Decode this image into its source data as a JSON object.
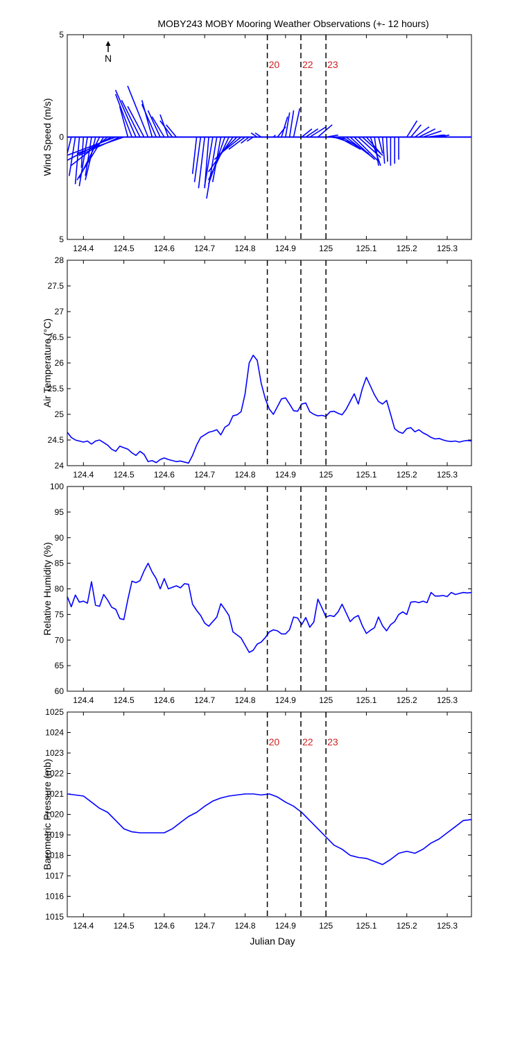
{
  "title": "MOBY243 MOBY Mooring Weather Observations (+- 12 hours)",
  "north_label": "N",
  "xlabel": "Julian Day",
  "colors": {
    "line": "#0000ff",
    "marker_text": "#cc2222",
    "axis": "#000000"
  },
  "x_range": [
    124.36,
    125.36
  ],
  "x_ticks": [
    "124.4",
    "124.5",
    "124.6",
    "124.7",
    "124.8",
    "124.9",
    "125",
    "125.1",
    "125.2",
    "125.3"
  ],
  "markers": [
    {
      "x": 124.855,
      "label": "20"
    },
    {
      "x": 124.938,
      "label": "22"
    },
    {
      "x": 125.0,
      "label": "23"
    }
  ],
  "chart_data": [
    {
      "type": "line",
      "subtype": "wind-stick",
      "ylabel": "Wind Speed (m/s)",
      "ylim": [
        -5,
        5
      ],
      "y_tick_labels": [
        "5",
        "0",
        "5"
      ],
      "show_marker_labels": true,
      "series": [
        {
          "x": [
            124.37,
            124.38,
            124.39,
            124.4,
            124.41,
            124.42,
            124.43,
            124.44,
            124.45,
            124.46,
            124.47,
            124.48,
            124.49,
            124.5,
            124.51,
            124.52,
            124.53,
            124.54,
            124.55,
            124.56,
            124.57,
            124.58,
            124.59,
            124.6,
            124.61,
            124.62,
            124.63,
            124.68,
            124.69,
            124.7,
            124.71,
            124.72,
            124.73,
            124.74,
            124.75,
            124.76,
            124.77,
            124.78,
            124.79,
            124.8,
            124.81,
            124.82,
            124.83,
            124.84,
            124.87,
            124.88,
            124.89,
            124.9,
            124.91,
            124.92,
            124.94,
            124.95,
            124.96,
            124.98,
            125.0,
            125.01,
            125.02,
            125.03,
            125.04,
            125.05,
            125.06,
            125.07,
            125.08,
            125.09,
            125.1,
            125.11,
            125.12,
            125.13,
            125.14,
            125.15,
            125.16,
            125.17,
            125.18,
            125.2,
            125.21,
            125.22,
            125.23,
            125.24,
            125.25,
            125.26,
            125.28,
            125.3,
            125.32,
            125.34,
            125.35
          ],
          "u": [
            -0.4,
            -0.3,
            -0.2,
            -0.1,
            -0.4,
            -0.3,
            -0.5,
            -1.0,
            -1.3,
            -1.8,
            -2.3,
            -2.4,
            -2.0,
            -2.3,
            -0.4,
            -0.8,
            -1.0,
            -0.9,
            -0.8,
            -1.0,
            -0.5,
            -0.7,
            -0.6,
            -0.6,
            -0.4,
            -0.6,
            -0.5,
            -0.2,
            -0.3,
            -0.3,
            -0.2,
            -0.4,
            -0.5,
            -0.4,
            -0.8,
            -1.0,
            -1.2,
            -1.1,
            -1.0,
            -0.8,
            -0.4,
            -0.3,
            -0.3,
            -0.3,
            0.1,
            0.4,
            0.3,
            0.2,
            0.2,
            0.3,
            0.5,
            0.6,
            0.8,
            0.7,
            0.6,
            0.8,
            0.9,
            1.1,
            1.3,
            1.3,
            1.2,
            1.2,
            1.1,
            1.0,
            0.7,
            0.5,
            0.2,
            0.2,
            0.1,
            0.05,
            0.0,
            0.0,
            0.0,
            0.5,
            0.5,
            0.7,
            0.8,
            0.9,
            0.8,
            0.7,
            0.5,
            0.5,
            0.4,
            0.3,
            0.2
          ],
          "v": [
            -1.6,
            -1.9,
            -2.3,
            -1.5,
            -2.4,
            -1.9,
            -2.1,
            -2.0,
            -2.1,
            -1.4,
            -1.2,
            -0.9,
            -0.9,
            -0.8,
            1.5,
            2.1,
            2.3,
            1.8,
            1.5,
            2.5,
            1.8,
            1.6,
            1.3,
            1.0,
            1.1,
            0.8,
            0.6,
            -1.8,
            -2.2,
            -2.5,
            -2.5,
            -2.4,
            -3.0,
            -2.2,
            -2.3,
            -2.1,
            -1.7,
            -1.1,
            -0.8,
            -0.6,
            -0.3,
            -0.2,
            0.2,
            0.2,
            0.1,
            0.5,
            1.0,
            1.2,
            1.3,
            1.4,
            0.4,
            0.4,
            0.5,
            0.6,
            0.1,
            -0.1,
            -0.3,
            -0.6,
            -0.8,
            -1.0,
            -1.1,
            -1.2,
            -1.0,
            -0.9,
            -0.8,
            -1.4,
            -1.4,
            -0.8,
            -1.3,
            -1.2,
            -1.4,
            -1.3,
            -1.1,
            0.8,
            0.6,
            0.5,
            0.4,
            0.3,
            0.1,
            0.1,
            0.1,
            0.0,
            0.0,
            0.0,
            0.0
          ]
        }
      ]
    },
    {
      "type": "line",
      "ylabel": "Air Temperature (°C)",
      "ylim": [
        24,
        28
      ],
      "y_tick_labels": [
        "24",
        "24.5",
        "25",
        "25.5",
        "26",
        "26.5",
        "27",
        "27.5",
        "28"
      ],
      "show_marker_labels": false,
      "series": [
        {
          "x": [
            124.36,
            124.37,
            124.38,
            124.39,
            124.4,
            124.41,
            124.42,
            124.43,
            124.44,
            124.45,
            124.46,
            124.47,
            124.48,
            124.49,
            124.5,
            124.51,
            124.52,
            124.53,
            124.54,
            124.55,
            124.56,
            124.57,
            124.58,
            124.59,
            124.6,
            124.61,
            124.62,
            124.63,
            124.64,
            124.65,
            124.66,
            124.67,
            124.68,
            124.69,
            124.7,
            124.71,
            124.72,
            124.73,
            124.74,
            124.75,
            124.76,
            124.77,
            124.78,
            124.79,
            124.8,
            124.81,
            124.82,
            124.83,
            124.84,
            124.85,
            124.86,
            124.87,
            124.88,
            124.89,
            124.9,
            124.91,
            124.92,
            124.93,
            124.94,
            124.95,
            124.96,
            124.97,
            124.98,
            124.99,
            125.0,
            125.01,
            125.02,
            125.03,
            125.04,
            125.05,
            125.06,
            125.07,
            125.08,
            125.09,
            125.1,
            125.11,
            125.12,
            125.13,
            125.14,
            125.15,
            125.16,
            125.17,
            125.18,
            125.19,
            125.2,
            125.21,
            125.22,
            125.23,
            125.24,
            125.25,
            125.26,
            125.27,
            125.28,
            125.29,
            125.3,
            125.31,
            125.32,
            125.33,
            125.34,
            125.35,
            125.36
          ],
          "values": [
            24.65,
            24.55,
            24.5,
            24.48,
            24.46,
            24.48,
            24.42,
            24.48,
            24.5,
            24.45,
            24.4,
            24.32,
            24.28,
            24.38,
            24.35,
            24.32,
            24.25,
            24.2,
            24.28,
            24.22,
            24.08,
            24.1,
            24.06,
            24.12,
            24.15,
            24.12,
            24.1,
            24.08,
            24.09,
            24.07,
            24.05,
            24.2,
            24.4,
            24.55,
            24.6,
            24.65,
            24.67,
            24.7,
            24.6,
            24.75,
            24.8,
            24.97,
            24.99,
            25.05,
            25.4,
            26.0,
            26.15,
            26.05,
            25.6,
            25.3,
            25.1,
            25.0,
            25.15,
            25.3,
            25.32,
            25.2,
            25.07,
            25.06,
            25.2,
            25.22,
            25.05,
            25.0,
            24.97,
            24.98,
            24.96,
            25.05,
            25.06,
            25.02,
            24.99,
            25.1,
            25.25,
            25.4,
            25.2,
            25.5,
            25.72,
            25.55,
            25.38,
            25.25,
            25.2,
            25.27,
            25.0,
            24.72,
            24.66,
            24.63,
            24.72,
            24.74,
            24.66,
            24.7,
            24.64,
            24.6,
            24.55,
            24.52,
            24.53,
            24.5,
            24.48,
            24.47,
            24.48,
            24.46,
            24.48,
            24.49,
            24.48
          ]
        }
      ]
    },
    {
      "type": "line",
      "ylabel": "Relative Humidity (%)",
      "ylim": [
        60,
        100
      ],
      "y_tick_labels": [
        "60",
        "65",
        "70",
        "75",
        "80",
        "85",
        "90",
        "95",
        "100"
      ],
      "show_marker_labels": false,
      "series": [
        {
          "x": [
            124.36,
            124.37,
            124.38,
            124.39,
            124.4,
            124.41,
            124.42,
            124.43,
            124.44,
            124.45,
            124.46,
            124.47,
            124.48,
            124.49,
            124.5,
            124.51,
            124.52,
            124.53,
            124.54,
            124.55,
            124.56,
            124.57,
            124.58,
            124.59,
            124.6,
            124.61,
            124.62,
            124.63,
            124.64,
            124.65,
            124.66,
            124.67,
            124.68,
            124.69,
            124.7,
            124.71,
            124.72,
            124.73,
            124.74,
            124.75,
            124.76,
            124.77,
            124.78,
            124.79,
            124.8,
            124.81,
            124.82,
            124.83,
            124.84,
            124.85,
            124.86,
            124.87,
            124.88,
            124.89,
            124.9,
            124.91,
            124.92,
            124.93,
            124.94,
            124.95,
            124.96,
            124.97,
            124.98,
            124.99,
            125.0,
            125.01,
            125.02,
            125.03,
            125.04,
            125.05,
            125.06,
            125.07,
            125.08,
            125.09,
            125.1,
            125.11,
            125.12,
            125.13,
            125.14,
            125.15,
            125.16,
            125.17,
            125.18,
            125.19,
            125.2,
            125.21,
            125.22,
            125.23,
            125.24,
            125.25,
            125.26,
            125.27,
            125.28,
            125.29,
            125.3,
            125.31,
            125.32,
            125.33,
            125.34,
            125.35,
            125.36
          ],
          "values": [
            78.5,
            76.5,
            78.8,
            77.4,
            77.6,
            77.2,
            81.4,
            76.8,
            76.6,
            78.9,
            77.8,
            76.4,
            76.0,
            74.2,
            74.0,
            78.0,
            81.5,
            81.2,
            81.6,
            83.5,
            85.0,
            83.3,
            82.0,
            80.0,
            82.0,
            80.0,
            80.3,
            80.6,
            80.2,
            81.0,
            80.9,
            77.0,
            75.8,
            74.8,
            73.3,
            72.7,
            73.6,
            74.5,
            77.1,
            76.0,
            74.8,
            71.6,
            71.0,
            70.4,
            69.0,
            67.6,
            68.0,
            69.2,
            69.6,
            70.5,
            71.6,
            72.0,
            71.8,
            71.2,
            71.2,
            72.0,
            74.5,
            74.3,
            73.0,
            74.4,
            72.5,
            73.5,
            78.0,
            76.3,
            74.5,
            74.8,
            74.6,
            75.5,
            77.0,
            75.3,
            73.6,
            74.4,
            74.8,
            72.8,
            71.3,
            71.9,
            72.4,
            74.5,
            72.8,
            71.8,
            73.0,
            73.6,
            75.0,
            75.5,
            75.0,
            77.4,
            77.5,
            77.3,
            77.6,
            77.3,
            79.3,
            78.6,
            78.6,
            78.7,
            78.5,
            79.3,
            78.9,
            79.1,
            79.3,
            79.2,
            79.3
          ]
        }
      ]
    },
    {
      "type": "line",
      "ylabel": "Barometric Pressure (mb)",
      "ylim": [
        1015,
        1025
      ],
      "y_tick_labels": [
        "1015",
        "1016",
        "1017",
        "1018",
        "1019",
        "1020",
        "1021",
        "1022",
        "1023",
        "1024",
        "1025"
      ],
      "show_marker_labels": true,
      "series": [
        {
          "x": [
            124.36,
            124.38,
            124.4,
            124.42,
            124.44,
            124.46,
            124.48,
            124.5,
            124.52,
            124.54,
            124.56,
            124.58,
            124.6,
            124.62,
            124.64,
            124.66,
            124.68,
            124.7,
            124.72,
            124.74,
            124.76,
            124.78,
            124.8,
            124.82,
            124.84,
            124.86,
            124.88,
            124.9,
            124.92,
            124.94,
            124.96,
            124.98,
            125.0,
            125.02,
            125.04,
            125.06,
            125.08,
            125.1,
            125.12,
            125.14,
            125.16,
            125.18,
            125.2,
            125.22,
            125.24,
            125.26,
            125.28,
            125.3,
            125.32,
            125.34,
            125.36
          ],
          "values": [
            1021.0,
            1020.95,
            1020.9,
            1020.6,
            1020.3,
            1020.1,
            1019.7,
            1019.3,
            1019.15,
            1019.1,
            1019.1,
            1019.1,
            1019.1,
            1019.3,
            1019.6,
            1019.9,
            1020.1,
            1020.4,
            1020.65,
            1020.8,
            1020.9,
            1020.95,
            1021.0,
            1021.0,
            1020.95,
            1021.0,
            1020.85,
            1020.6,
            1020.4,
            1020.1,
            1019.7,
            1019.3,
            1018.9,
            1018.5,
            1018.3,
            1018.0,
            1017.9,
            1017.85,
            1017.7,
            1017.55,
            1017.8,
            1018.1,
            1018.2,
            1018.1,
            1018.3,
            1018.6,
            1018.8,
            1019.1,
            1019.4,
            1019.7,
            1019.75
          ]
        }
      ]
    }
  ]
}
